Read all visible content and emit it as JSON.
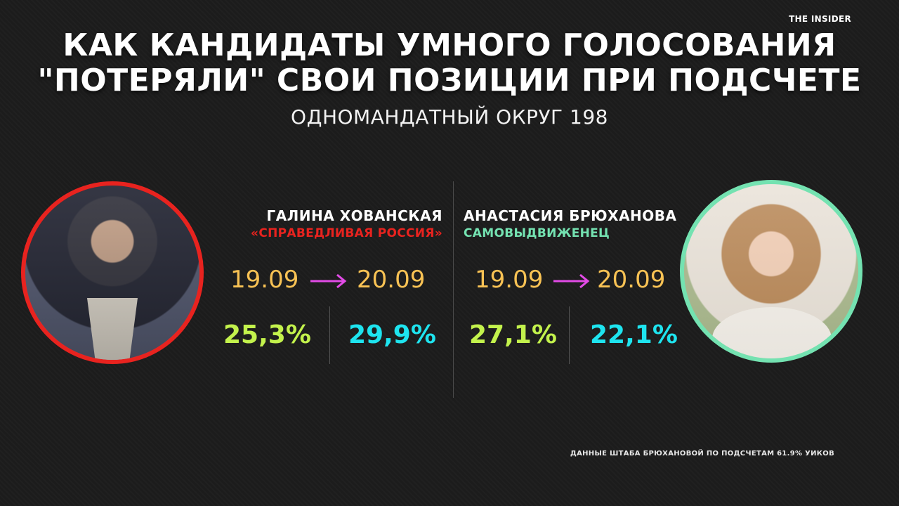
{
  "brand": "THE INSIDER",
  "title": {
    "line1": "КАК КАНДИДАТЫ УМНОГО ГОЛОСОВАНИЯ",
    "line2": "\"ПОТЕРЯЛИ\" СВОИ ПОЗИЦИИ ПРИ ПОДСЧЕТЕ"
  },
  "subtitle": "ОДНОМАНДАТНЫЙ ОКРУГ 198",
  "candidates": [
    {
      "name": "ГАЛИНА ХОВАНСКАЯ",
      "party": "«СПРАВЕДЛИВАЯ РОССИЯ»",
      "party_color": "#e8231f",
      "date_from": "19.09",
      "date_to": "20.09",
      "value_from": "25,3%",
      "value_to": "29,9%"
    },
    {
      "name": "АНАСТАСИЯ БРЮХАНОВА",
      "party": "САМОВЫДВИЖЕНЕЦ",
      "party_color": "#74e2b1",
      "date_from": "19.09",
      "date_to": "20.09",
      "value_from": "27,1%",
      "value_to": "22,1%"
    }
  ],
  "colors": {
    "background": "#1c1c1c",
    "date": "#f8c254",
    "arrow": "#e24be6",
    "value_from": "#c3f24c",
    "value_to": "#1ee4ef"
  },
  "footnote": "ДАННЫЕ ШТАБА БРЮХАНОВОЙ ПО ПОДСЧЕТАМ 61.9% УИКОВ"
}
